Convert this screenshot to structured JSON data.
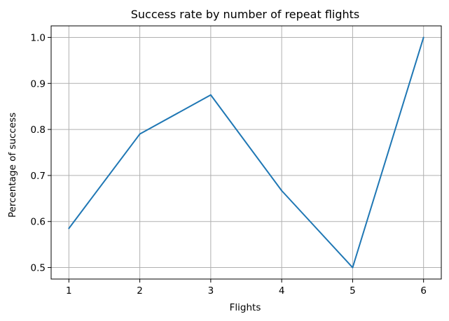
{
  "chart_data": {
    "type": "line",
    "title": "Success rate by number of repeat flights",
    "xlabel": "Flights",
    "ylabel": "Percentage of success",
    "x": [
      1,
      2,
      3,
      4,
      5,
      6
    ],
    "series": [
      {
        "values": [
          0.585,
          0.79,
          0.875,
          0.667,
          0.5,
          1.0
        ],
        "color": "#1f77b4"
      }
    ],
    "xticks": [
      "1",
      "2",
      "3",
      "4",
      "5",
      "6"
    ],
    "yticks": [
      "0.5",
      "0.6",
      "0.7",
      "0.8",
      "0.9",
      "1.0"
    ],
    "xlim": [
      0.75,
      6.25
    ],
    "ylim": [
      0.475,
      1.025
    ],
    "grid": true
  }
}
